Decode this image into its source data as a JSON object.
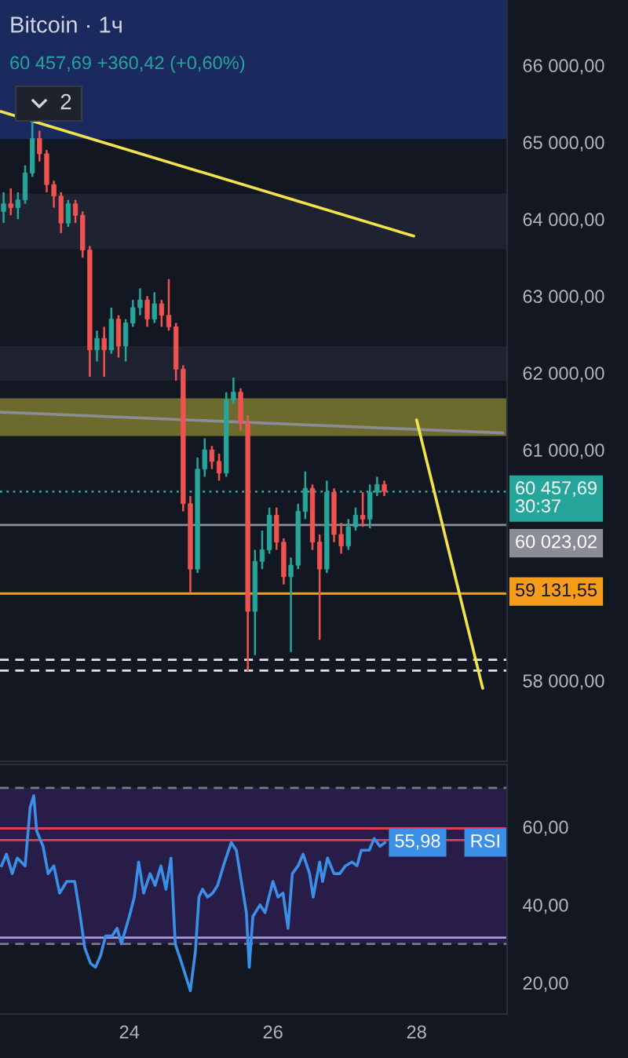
{
  "chart_data": [
    {
      "type": "candlestick",
      "title": "Bitcoin · 1ч",
      "subtitle": "60 457,69 +360,42 (+0,60%)",
      "annotations": [
        "2"
      ],
      "x": [
        22.25,
        22.35,
        22.45,
        22.55,
        22.65,
        22.75,
        22.85,
        22.95,
        23.05,
        23.15,
        23.25,
        23.35,
        23.45,
        23.55,
        23.65,
        23.75,
        23.85,
        23.95,
        24.05,
        24.15,
        24.25,
        24.35,
        24.45,
        24.55,
        24.65,
        24.75,
        24.85,
        24.95,
        25.05,
        25.15,
        25.25,
        25.35,
        25.45,
        25.55,
        25.65,
        25.75,
        25.85,
        25.95,
        26.05,
        26.15,
        26.25,
        26.35,
        26.45,
        26.55,
        26.65,
        26.75,
        26.85,
        26.95,
        27.05,
        27.15,
        27.25,
        27.35,
        27.45,
        27.55
      ],
      "ohlc": [
        [
          64100,
          64350,
          63950,
          64200
        ],
        [
          64200,
          64400,
          64050,
          64150
        ],
        [
          64150,
          64350,
          64000,
          64250
        ],
        [
          64250,
          64700,
          64200,
          64600
        ],
        [
          64600,
          65300,
          64550,
          65050
        ],
        [
          65050,
          65150,
          64750,
          64850
        ],
        [
          64850,
          64900,
          64350,
          64450
        ],
        [
          64450,
          64500,
          64150,
          64300
        ],
        [
          64300,
          64350,
          63820,
          63950
        ],
        [
          63950,
          64250,
          63900,
          64200
        ],
        [
          64200,
          64250,
          63950,
          64050
        ],
        [
          64050,
          64100,
          63500,
          63600
        ],
        [
          63600,
          63650,
          61950,
          62300
        ],
        [
          62300,
          62550,
          62150,
          62450
        ],
        [
          62450,
          62600,
          61950,
          62300
        ],
        [
          62300,
          62850,
          62250,
          62700
        ],
        [
          62700,
          62750,
          62200,
          62350
        ],
        [
          62350,
          62700,
          62150,
          62650
        ],
        [
          62650,
          62950,
          62600,
          62850
        ],
        [
          62850,
          63100,
          62750,
          62950
        ],
        [
          62950,
          63000,
          62600,
          62700
        ],
        [
          62700,
          63050,
          62650,
          62900
        ],
        [
          62900,
          62950,
          62600,
          62750
        ],
        [
          62750,
          63220,
          62550,
          62600
        ],
        [
          62600,
          62650,
          61900,
          62050
        ],
        [
          62050,
          62100,
          60200,
          60300
        ],
        [
          60300,
          60400,
          59140,
          59450
        ],
        [
          59450,
          60900,
          59400,
          60750
        ],
        [
          60750,
          61150,
          60650,
          61000
        ],
        [
          61000,
          61050,
          60750,
          60850
        ],
        [
          60850,
          60950,
          60600,
          60700
        ],
        [
          60700,
          61750,
          60650,
          61650
        ],
        [
          61650,
          61940,
          61600,
          61750
        ],
        [
          61750,
          61800,
          61250,
          61350
        ],
        [
          61350,
          61450,
          58120,
          58900
        ],
        [
          58900,
          59700,
          58330,
          59550
        ],
        [
          59550,
          59950,
          59450,
          59700
        ],
        [
          59700,
          60250,
          59650,
          60150
        ],
        [
          60150,
          60250,
          59700,
          59800
        ],
        [
          59800,
          59850,
          59250,
          59350
        ],
        [
          59350,
          59600,
          58370,
          59500
        ],
        [
          59500,
          60300,
          59450,
          60200
        ],
        [
          60200,
          60720,
          60100,
          60500
        ],
        [
          60500,
          60550,
          59700,
          59800
        ],
        [
          59800,
          59900,
          58530,
          59450
        ],
        [
          59450,
          60600,
          59400,
          60450
        ],
        [
          60450,
          60500,
          59800,
          59900
        ],
        [
          59900,
          60050,
          59650,
          59750
        ],
        [
          59750,
          60100,
          59700,
          60000
        ],
        [
          60000,
          60250,
          59950,
          60150
        ],
        [
          60150,
          60450,
          60000,
          60100
        ],
        [
          60100,
          60550,
          59980,
          60450
        ],
        [
          60450,
          60650,
          60400,
          60550
        ],
        [
          60550,
          60600,
          60400,
          60460
        ]
      ],
      "series": [
        {
          "type": "line",
          "x": [
            22.21,
            27.96
          ],
          "values": [
            65400,
            63780
          ],
          "color": "#f2e34a"
        },
        {
          "type": "line",
          "x": [
            22.21,
            29.2
          ],
          "values": [
            61490,
            61220
          ],
          "color": "#8a8d96"
        },
        {
          "type": "line",
          "x": [
            28.0,
            28.92
          ],
          "values": [
            61390,
            57900
          ],
          "color": "#f2e34a"
        }
      ],
      "bands": [
        {
          "axis": "y",
          "from": 65040,
          "to": 66850,
          "color": "#1b2a5e"
        },
        {
          "axis": "y",
          "from": 63610,
          "to": 64330,
          "color": "#1f2230"
        },
        {
          "axis": "y",
          "from": 61900,
          "to": 62350,
          "color": "#1f2230"
        },
        {
          "axis": "y",
          "from": 61180,
          "to": 61670,
          "color": "#6d6a2e"
        }
      ],
      "ref_lines": [
        {
          "axis": "y",
          "value": 60457.69,
          "label": "60 457,69\n30:37",
          "color": "#26a69a",
          "line_style": "dotted"
        },
        {
          "axis": "y",
          "value": 60023.02,
          "label": "60 023,02",
          "color": "#8a8d96"
        },
        {
          "axis": "y",
          "value": 59131.55,
          "label": "59 131,55",
          "color": "#f59c1a"
        },
        {
          "axis": "y",
          "value": 58270,
          "color": "#e0e3eb",
          "line_style": "dashed"
        },
        {
          "axis": "y",
          "value": 58130,
          "color": "#e0e3eb",
          "line_style": "dashed"
        }
      ],
      "xlim": [
        22.2,
        29.26
      ],
      "ylim": [
        56950,
        66850
      ],
      "yticks": [
        {
          "value": 58000,
          "label": "58 000,00"
        },
        {
          "value": 61000,
          "label": "61 000,00"
        },
        {
          "value": 62000,
          "label": "62 000,00"
        },
        {
          "value": 63000,
          "label": "63 000,00"
        },
        {
          "value": 64000,
          "label": "64 000,00"
        },
        {
          "value": 65000,
          "label": "65 000,00"
        },
        {
          "value": 66000,
          "label": "66 000,00"
        }
      ],
      "tick_labels": "y"
    },
    {
      "type": "line",
      "series": [
        {
          "name": "RSI",
          "color": "#3b8fe6",
          "x": [
            22.22,
            22.29,
            22.37,
            22.44,
            22.55,
            22.62,
            22.67,
            22.71,
            22.8,
            22.87,
            22.95,
            23.03,
            23.13,
            23.24,
            23.31,
            23.38,
            23.46,
            23.53,
            23.6,
            23.67,
            23.76,
            23.83,
            23.89,
            24.0,
            24.07,
            24.13,
            24.2,
            24.29,
            24.36,
            24.44,
            24.51,
            24.58,
            24.64,
            24.73,
            24.85,
            24.92,
            24.97,
            25.02,
            25.09,
            25.16,
            25.23,
            25.31,
            25.42,
            25.49,
            25.56,
            25.63,
            25.67,
            25.72,
            25.82,
            25.89,
            26.0,
            26.07,
            26.14,
            26.21,
            26.27,
            26.35,
            26.42,
            26.51,
            26.56,
            26.65,
            26.69,
            26.76,
            26.85,
            26.93,
            27.01,
            27.1,
            27.17,
            27.23,
            27.34,
            27.41,
            27.49,
            27.56
          ],
          "values": [
            50,
            53,
            48,
            52,
            50,
            65,
            68,
            59,
            55,
            48,
            50,
            43,
            46,
            46,
            38,
            29,
            25,
            24,
            27,
            32,
            32,
            34,
            30,
            37,
            42,
            51,
            43,
            48,
            45,
            50,
            44,
            52,
            30,
            25,
            18,
            28,
            42,
            44,
            42,
            43,
            45,
            50,
            56,
            54,
            46,
            38,
            24,
            37,
            40,
            38,
            46,
            42,
            43,
            34,
            48,
            50,
            53,
            48,
            42,
            51,
            46,
            52,
            48,
            48,
            50,
            51,
            50,
            54,
            54,
            57,
            55,
            55.98
          ],
          "value_labels": [
            null,
            null,
            null,
            null,
            null,
            null,
            null,
            null,
            null,
            null,
            null,
            null,
            null,
            null,
            null,
            null,
            null,
            null,
            null,
            null,
            null,
            null,
            null,
            null,
            null,
            null,
            null,
            null,
            null,
            null,
            null,
            null,
            null,
            null,
            null,
            null,
            null,
            null,
            null,
            null,
            null,
            null,
            null,
            null,
            null,
            null,
            null,
            null,
            null,
            null,
            null,
            null,
            null,
            null,
            null,
            null,
            null,
            null,
            null,
            null,
            null,
            null,
            null,
            null,
            null,
            null,
            null,
            null,
            null,
            null,
            null,
            "55,98"
          ]
        }
      ],
      "bands": [
        {
          "axis": "y",
          "from": 30,
          "to": 70,
          "color": "#271d48"
        }
      ],
      "ref_lines": [
        {
          "axis": "y",
          "value": 70,
          "color": "#787b86",
          "line_style": "dashed"
        },
        {
          "axis": "y",
          "value": 30,
          "color": "#787b86",
          "line_style": "dashed"
        },
        {
          "axis": "y",
          "value": 59.6,
          "color": "#d9415a"
        },
        {
          "axis": "y",
          "value": 56.6,
          "color": "#d9415a"
        },
        {
          "axis": "y",
          "value": 31.6,
          "color": "#a99ae0"
        }
      ],
      "xlim": [
        22.2,
        29.26
      ],
      "ylim": [
        12,
        76
      ],
      "xticks": [
        24,
        26,
        28
      ],
      "yticks": [
        {
          "value": 20,
          "label": "20,00"
        },
        {
          "value": 40,
          "label": "40,00"
        },
        {
          "value": 60,
          "label": "60,00"
        }
      ]
    }
  ]
}
